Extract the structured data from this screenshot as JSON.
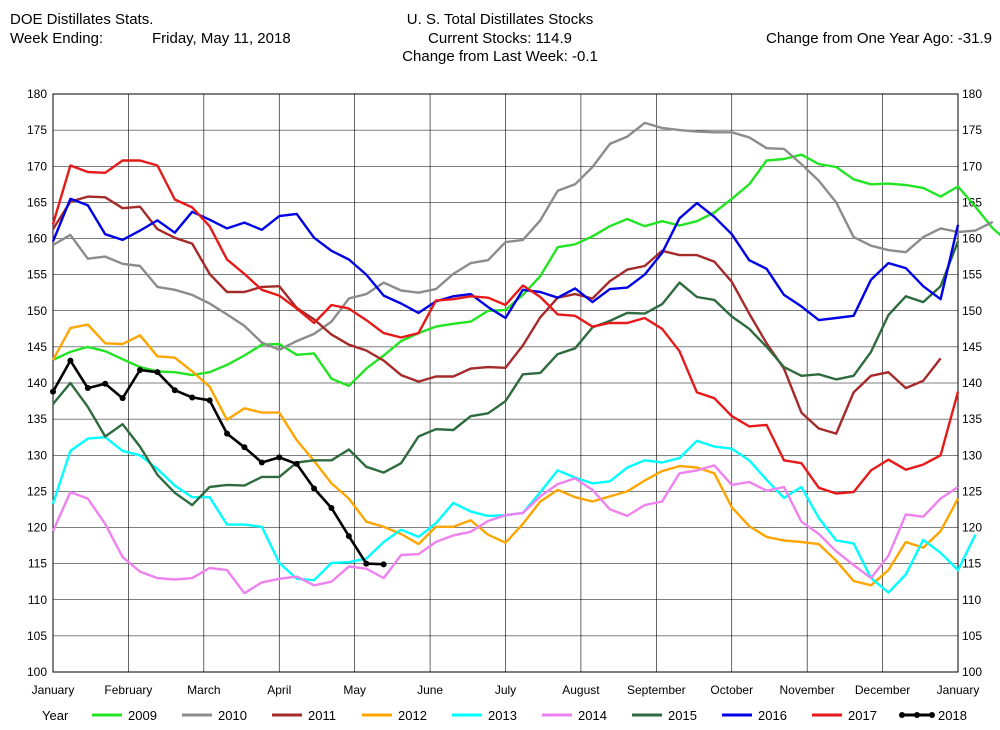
{
  "header": {
    "left_title": "DOE Distillates Stats.",
    "week_label": "Week Ending:",
    "week_value": "Friday, May 11, 2018",
    "center_title": "U. S. Total Distillates Stocks",
    "current_stocks": "Current Stocks: 114.9",
    "change_week": "Change from Last Week:  -0.1",
    "change_year": "Change from One Year Ago: -31.9"
  },
  "chart_data": {
    "type": "line",
    "ylim": [
      100,
      180
    ],
    "y_ticks": [
      100,
      105,
      110,
      115,
      120,
      125,
      130,
      135,
      140,
      145,
      150,
      155,
      160,
      165,
      170,
      175,
      180
    ],
    "xlim": [
      0,
      52
    ],
    "x_tick_labels": [
      "January",
      "February",
      "March",
      "April",
      "May",
      "June",
      "July",
      "August",
      "September",
      "October",
      "November",
      "December",
      "January"
    ],
    "grid": true,
    "legend_position": "bottom",
    "legend_title": "Year",
    "series": [
      {
        "name": "2009",
        "color": "#22e422",
        "values": [
          143.2,
          144.3,
          145.0,
          144.4,
          143.3,
          142.2,
          141.6,
          141.5,
          141.1,
          141.5,
          142.5,
          143.8,
          145.3,
          145.4,
          143.9,
          144.1,
          140.6,
          139.6,
          142.0,
          143.8,
          145.8,
          146.9,
          147.8,
          148.2,
          148.5,
          150.0,
          150.1,
          152.2,
          154.8,
          158.8,
          159.2,
          160.3,
          161.7,
          162.7,
          161.7,
          162.4,
          161.8,
          162.4,
          163.6,
          165.5,
          167.5,
          170.8,
          171.0,
          171.6,
          170.3,
          169.9,
          168.2,
          167.5,
          167.6,
          167.4,
          167.0,
          165.8,
          167.2,
          164.4,
          161.4,
          159.3,
          159.2
        ]
      },
      {
        "name": "2010",
        "color": "#8c8c8c",
        "values": [
          159.1,
          160.5,
          157.2,
          157.5,
          156.5,
          156.2,
          153.3,
          152.9,
          152.2,
          151.0,
          149.5,
          147.9,
          145.6,
          144.6,
          145.8,
          146.8,
          148.5,
          151.7,
          152.3,
          153.9,
          152.8,
          152.5,
          153.0,
          155.1,
          156.6,
          157.0,
          159.5,
          159.8,
          162.5,
          166.6,
          167.5,
          169.9,
          173.1,
          174.1,
          176.0,
          175.3,
          175.0,
          174.8,
          174.7,
          174.7,
          174.0,
          172.5,
          172.4,
          170.3,
          168.0,
          165.0,
          160.2,
          159.0,
          158.4,
          158.1,
          160.2,
          161.4,
          160.9,
          161.1,
          162.3
        ]
      },
      {
        "name": "2011",
        "color": "#a52a2a",
        "values": [
          161.3,
          165.1,
          165.8,
          165.7,
          164.2,
          164.4,
          161.3,
          160.1,
          159.3,
          155.1,
          152.6,
          152.6,
          153.3,
          153.4,
          150.4,
          148.8,
          146.7,
          145.3,
          144.5,
          143.1,
          141.1,
          140.2,
          140.9,
          140.9,
          142.0,
          142.2,
          142.1,
          145.2,
          149.1,
          151.8,
          152.3,
          151.7,
          154.1,
          155.7,
          156.2,
          158.3,
          157.7,
          157.7,
          156.8,
          154.0,
          149.6,
          145.5,
          142.0,
          135.9,
          133.7,
          133.0,
          138.7,
          141.0,
          141.5,
          139.3,
          140.3,
          143.4
        ]
      },
      {
        "name": "2012",
        "color": "#ffa500",
        "values": [
          143.2,
          147.6,
          148.1,
          145.5,
          145.4,
          146.6,
          143.7,
          143.5,
          141.6,
          139.5,
          134.9,
          136.5,
          135.9,
          135.9,
          132.1,
          129.2,
          126.1,
          124.0,
          120.8,
          120.1,
          119.1,
          117.7,
          120.1,
          120.1,
          121.0,
          119.0,
          117.9,
          120.5,
          123.6,
          125.2,
          124.2,
          123.6,
          124.3,
          125.0,
          126.5,
          127.8,
          128.5,
          128.3,
          127.5,
          122.8,
          120.2,
          118.7,
          118.2,
          118.0,
          117.7,
          115.4,
          112.6,
          112.0,
          114.1,
          118.0,
          117.2,
          119.5,
          124.0
        ]
      },
      {
        "name": "2013",
        "color": "#00ffff",
        "values": [
          123.3,
          130.6,
          132.3,
          132.5,
          130.6,
          130.0,
          128.1,
          125.8,
          124.2,
          124.2,
          120.4,
          120.4,
          120.1,
          115.1,
          112.9,
          112.7,
          115.1,
          115.2,
          115.7,
          118.0,
          119.7,
          118.7,
          120.6,
          123.4,
          122.2,
          121.6,
          121.7,
          122.0,
          124.9,
          127.9,
          126.9,
          126.1,
          126.4,
          128.3,
          129.3,
          129.0,
          129.6,
          132.0,
          131.2,
          130.9,
          129.3,
          126.6,
          124.1,
          125.6,
          121.3,
          118.2,
          117.8,
          113.0,
          111.0,
          113.5,
          118.3,
          116.5,
          114.1,
          119.0
        ]
      },
      {
        "name": "2014",
        "color": "#ee82ee",
        "values": [
          119.5,
          124.9,
          124.0,
          120.5,
          115.9,
          113.9,
          113.0,
          112.8,
          113.0,
          114.4,
          114.1,
          110.9,
          112.4,
          112.9,
          113.2,
          112.0,
          112.5,
          114.6,
          114.3,
          113.0,
          116.2,
          116.3,
          118.0,
          118.9,
          119.4,
          120.9,
          121.7,
          122.0,
          124.3,
          126.0,
          126.8,
          125.2,
          122.5,
          121.6,
          123.1,
          123.6,
          127.5,
          127.9,
          128.6,
          125.9,
          126.3,
          125.1,
          125.6,
          120.8,
          119.1,
          116.7,
          114.8,
          113.0,
          116.1,
          121.8,
          121.5,
          124.0,
          125.6
        ]
      },
      {
        "name": "2015",
        "color": "#2e6b3e",
        "values": [
          137.1,
          140.0,
          136.7,
          132.6,
          134.3,
          131.2,
          127.3,
          124.8,
          123.1,
          125.6,
          125.9,
          125.8,
          127.0,
          127.0,
          129.0,
          129.3,
          129.3,
          130.8,
          128.4,
          127.6,
          128.9,
          132.6,
          133.6,
          133.5,
          135.4,
          135.8,
          137.5,
          141.2,
          141.4,
          144.0,
          144.8,
          147.7,
          148.6,
          149.7,
          149.6,
          150.9,
          153.9,
          151.9,
          151.5,
          149.2,
          147.5,
          145.0,
          142.2,
          141.0,
          141.2,
          140.5,
          141.0,
          144.3,
          149.4,
          152.0,
          151.2,
          153.4,
          159.6
        ]
      },
      {
        "name": "2016",
        "color": "#0000e6",
        "values": [
          159.6,
          165.5,
          164.6,
          160.6,
          159.8,
          161.1,
          162.5,
          160.8,
          163.7,
          162.6,
          161.4,
          162.2,
          161.2,
          163.1,
          163.4,
          160.1,
          158.3,
          157.1,
          155.0,
          152.1,
          151.0,
          149.7,
          151.3,
          152.0,
          152.3,
          150.5,
          149.0,
          152.9,
          152.6,
          151.8,
          153.1,
          151.2,
          153.0,
          153.2,
          155.0,
          158.0,
          162.8,
          164.9,
          163.0,
          160.6,
          157.0,
          155.8,
          152.2,
          150.6,
          148.7,
          149.0,
          149.3,
          154.3,
          156.6,
          155.9,
          153.4,
          151.6,
          161.9
        ]
      },
      {
        "name": "2017",
        "color": "#e61a1a",
        "values": [
          162.0,
          170.1,
          169.2,
          169.1,
          170.8,
          170.8,
          170.1,
          165.4,
          164.3,
          161.7,
          157.1,
          155.1,
          152.9,
          152.1,
          150.3,
          148.3,
          150.8,
          150.3,
          148.7,
          146.9,
          146.3,
          146.9,
          151.4,
          151.6,
          152.0,
          151.8,
          150.8,
          153.5,
          151.9,
          149.5,
          149.3,
          147.8,
          148.3,
          148.3,
          149.0,
          147.5,
          144.4,
          138.7,
          137.9,
          135.4,
          134.0,
          134.2,
          129.3,
          128.9,
          125.5,
          124.7,
          124.9,
          127.9,
          129.4,
          128.0,
          128.7,
          130.0,
          138.8
        ]
      },
      {
        "name": "2018",
        "color": "#000000",
        "values": [
          138.8,
          143.1,
          139.3,
          139.9,
          137.9,
          141.8,
          141.5,
          139.0,
          138.0,
          137.6,
          133.0,
          131.1,
          129.0,
          129.7,
          128.8,
          125.4,
          122.7,
          118.8,
          115.0,
          114.9
        ]
      }
    ]
  }
}
